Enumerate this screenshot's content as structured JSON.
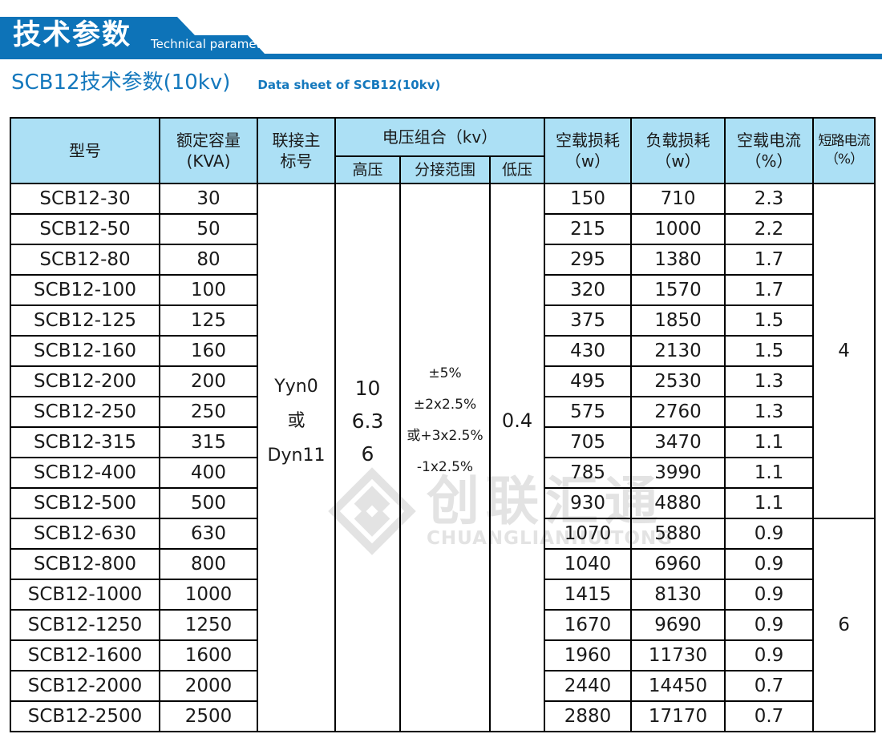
{
  "banner": {
    "title_cn": "技术参数",
    "title_en": "Technical parameter"
  },
  "subtitle": {
    "cn": "SCB12技术参数(10kv)",
    "en": "Data sheet of SCB12(10kv)"
  },
  "colors": {
    "banner_blue": "#0d73b8",
    "title_blue": "#1478bd",
    "header_bg": "#ace0f5",
    "border_black": "#000000",
    "watermark_gray": "#e3e3e3"
  },
  "watermark": {
    "cn": "创联汇通",
    "en": "CHUANGLIANHUITONG"
  },
  "table": {
    "headers": {
      "model": [
        "型号"
      ],
      "capacity": [
        "额定容量",
        "(KVA)"
      ],
      "connection": [
        "联接主",
        "标号"
      ],
      "voltage_group": [
        "电压组合（kv）"
      ],
      "hv": [
        "高压"
      ],
      "tap_range": [
        "分接范围"
      ],
      "lv": [
        "低压"
      ],
      "no_load_loss": [
        "空载损耗",
        "（w）"
      ],
      "load_loss": [
        "负载损耗",
        "（w）"
      ],
      "no_load_current": [
        "空载电流",
        "（%）"
      ],
      "short_circuit_current": [
        "短路电流",
        "（%）"
      ]
    },
    "merged": {
      "connection": [
        "Yyn0",
        "或",
        "Dyn11"
      ],
      "hv": [
        "10",
        "6.3",
        "6"
      ],
      "tap_range": [
        "±5%",
        "±2x2.5%",
        "或+3x2.5%",
        "-1x2.5%"
      ],
      "lv": "0.4",
      "short_circuit_top": "4",
      "short_circuit_top_rows": 11,
      "short_circuit_bottom": "6",
      "short_circuit_bottom_rows": 7
    },
    "rows": [
      {
        "model": "SCB12-30",
        "capacity": "30",
        "no_load_loss": "150",
        "load_loss": "710",
        "no_load_current": "2.3"
      },
      {
        "model": "SCB12-50",
        "capacity": "50",
        "no_load_loss": "215",
        "load_loss": "1000",
        "no_load_current": "2.2"
      },
      {
        "model": "SCB12-80",
        "capacity": "80",
        "no_load_loss": "295",
        "load_loss": "1380",
        "no_load_current": "1.7"
      },
      {
        "model": "SCB12-100",
        "capacity": "100",
        "no_load_loss": "320",
        "load_loss": "1570",
        "no_load_current": "1.7"
      },
      {
        "model": "SCB12-125",
        "capacity": "125",
        "no_load_loss": "375",
        "load_loss": "1850",
        "no_load_current": "1.5"
      },
      {
        "model": "SCB12-160",
        "capacity": "160",
        "no_load_loss": "430",
        "load_loss": "2130",
        "no_load_current": "1.5"
      },
      {
        "model": "SCB12-200",
        "capacity": "200",
        "no_load_loss": "495",
        "load_loss": "2530",
        "no_load_current": "1.3"
      },
      {
        "model": "SCB12-250",
        "capacity": "250",
        "no_load_loss": "575",
        "load_loss": "2760",
        "no_load_current": "1.3"
      },
      {
        "model": "SCB12-315",
        "capacity": "315",
        "no_load_loss": "705",
        "load_loss": "3470",
        "no_load_current": "1.1"
      },
      {
        "model": "SCB12-400",
        "capacity": "400",
        "no_load_loss": "785",
        "load_loss": "3990",
        "no_load_current": "1.1"
      },
      {
        "model": "SCB12-500",
        "capacity": "500",
        "no_load_loss": "930",
        "load_loss": "4880",
        "no_load_current": "1.1"
      },
      {
        "model": "SCB12-630",
        "capacity": "630",
        "no_load_loss": "1070",
        "load_loss": "5880",
        "no_load_current": "0.9"
      },
      {
        "model": "SCB12-800",
        "capacity": "800",
        "no_load_loss": "1040",
        "load_loss": "6960",
        "no_load_current": "0.9"
      },
      {
        "model": "SCB12-1000",
        "capacity": "1000",
        "no_load_loss": "1415",
        "load_loss": "8130",
        "no_load_current": "0.9"
      },
      {
        "model": "SCB12-1250",
        "capacity": "1250",
        "no_load_loss": "1670",
        "load_loss": "9690",
        "no_load_current": "0.9"
      },
      {
        "model": "SCB12-1600",
        "capacity": "1600",
        "no_load_loss": "1960",
        "load_loss": "11730",
        "no_load_current": "0.9"
      },
      {
        "model": "SCB12-2000",
        "capacity": "2000",
        "no_load_loss": "2440",
        "load_loss": "14450",
        "no_load_current": "0.7"
      },
      {
        "model": "SCB12-2500",
        "capacity": "2500",
        "no_load_loss": "2880",
        "load_loss": "17170",
        "no_load_current": "0.7"
      }
    ]
  }
}
